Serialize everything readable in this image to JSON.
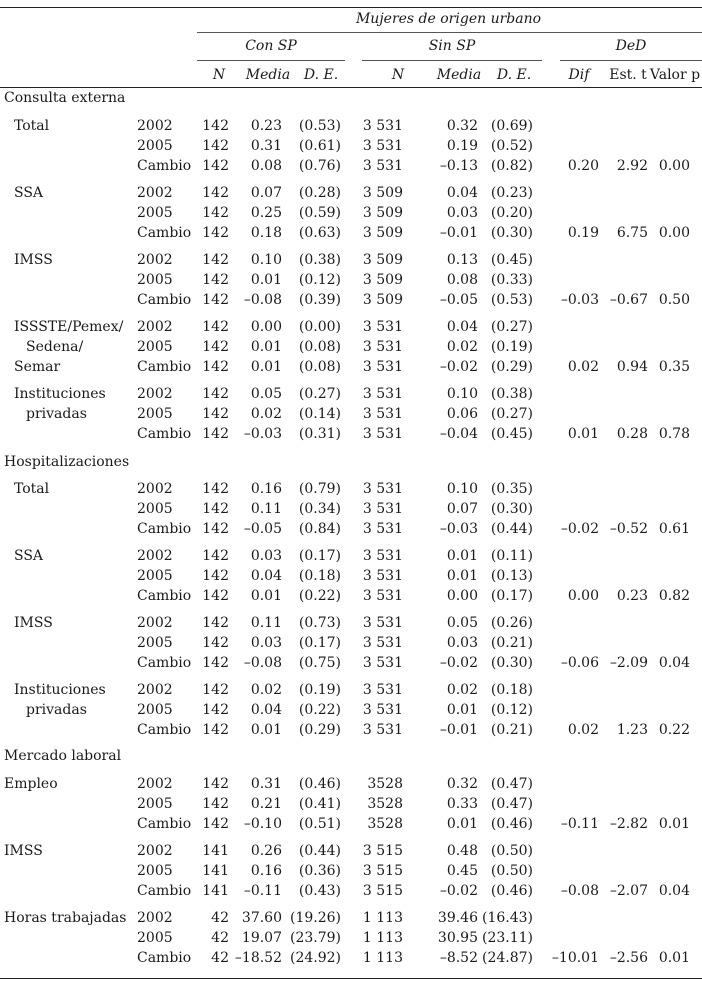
{
  "header": {
    "super": "Mujeres de origen urbano",
    "groups": [
      "Con SP",
      "Sin SP",
      "DeD"
    ],
    "cols": [
      "N",
      "Media",
      "D. E.",
      "N",
      "Media",
      "D. E.",
      "Dif",
      "Est. t",
      "Valor p"
    ]
  },
  "sections": [
    {
      "title": "Consulta externa",
      "blocks": [
        {
          "label": [
            "Total"
          ],
          "rows": [
            [
              "2002",
              "142",
              "0.23",
              "(0.53)",
              "3 531",
              "0.32",
              "(0.69)",
              "",
              "",
              ""
            ],
            [
              "2005",
              "142",
              "0.31",
              "(0.61)",
              "3 531",
              "0.19",
              "(0.52)",
              "",
              "",
              ""
            ],
            [
              "Cambio",
              "142",
              "0.08",
              "(0.76)",
              "3 531",
              "–0.13",
              "(0.82)",
              "0.20",
              "2.92",
              "0.00"
            ]
          ]
        },
        {
          "label": [
            "SSA"
          ],
          "rows": [
            [
              "2002",
              "142",
              "0.07",
              "(0.28)",
              "3 509",
              "0.04",
              "(0.23)",
              "",
              "",
              ""
            ],
            [
              "2005",
              "142",
              "0.25",
              "(0.59)",
              "3 509",
              "0.03",
              "(0.20)",
              "",
              "",
              ""
            ],
            [
              "Cambio",
              "142",
              "0.18",
              "(0.63)",
              "3 509",
              "–0.01",
              "(0.30)",
              "0.19",
              "6.75",
              "0.00"
            ]
          ]
        },
        {
          "label": [
            "IMSS"
          ],
          "rows": [
            [
              "2002",
              "142",
              "0.10",
              "(0.38)",
              "3 509",
              "0.13",
              "(0.45)",
              "",
              "",
              ""
            ],
            [
              "2005",
              "142",
              "0.01",
              "(0.12)",
              "3 509",
              "0.08",
              "(0.33)",
              "",
              "",
              ""
            ],
            [
              "Cambio",
              "142",
              "–0.08",
              "(0.39)",
              "3 509",
              "–0.05",
              "(0.53)",
              "–0.03",
              "–0.67",
              "0.50"
            ]
          ]
        },
        {
          "label": [
            "ISSSTE/Pemex/",
            "Sedena/",
            "Semar"
          ],
          "rows": [
            [
              "2002",
              "142",
              "0.00",
              "(0.00)",
              "3 531",
              "0.04",
              "(0.27)",
              "",
              "",
              ""
            ],
            [
              "2005",
              "142",
              "0.01",
              "(0.08)",
              "3 531",
              "0.02",
              "(0.19)",
              "",
              "",
              ""
            ],
            [
              "Cambio",
              "142",
              "0.01",
              "(0.08)",
              "3 531",
              "–0.02",
              "(0.29)",
              "0.02",
              "0.94",
              "0.35"
            ]
          ]
        },
        {
          "label": [
            "Instituciones",
            "privadas"
          ],
          "rows": [
            [
              "2002",
              "142",
              "0.05",
              "(0.27)",
              "3 531",
              "0.10",
              "(0.38)",
              "",
              "",
              ""
            ],
            [
              "2005",
              "142",
              "0.02",
              "(0.14)",
              "3 531",
              "0.06",
              "(0.27)",
              "",
              "",
              ""
            ],
            [
              "Cambio",
              "142",
              "–0.03",
              "(0.31)",
              "3 531",
              "–0.04",
              "(0.45)",
              "0.01",
              "0.28",
              "0.78"
            ]
          ]
        }
      ]
    },
    {
      "title": "Hospitalizaciones",
      "blocks": [
        {
          "label": [
            "Total"
          ],
          "rows": [
            [
              "2002",
              "142",
              "0.16",
              "(0.79)",
              "3 531",
              "0.10",
              "(0.35)",
              "",
              "",
              ""
            ],
            [
              "2005",
              "142",
              "0.11",
              "(0.34)",
              "3 531",
              "0.07",
              "(0.30)",
              "",
              "",
              ""
            ],
            [
              "Cambio",
              "142",
              "–0.05",
              "(0.84)",
              "3 531",
              "–0.03",
              "(0.44)",
              "–0.02",
              "–0.52",
              "0.61"
            ]
          ]
        },
        {
          "label": [
            "SSA"
          ],
          "rows": [
            [
              "2002",
              "142",
              "0.03",
              "(0.17)",
              "3 531",
              "0.01",
              "(0.11)",
              "",
              "",
              ""
            ],
            [
              "2005",
              "142",
              "0.04",
              "(0.18)",
              "3 531",
              "0.01",
              "(0.13)",
              "",
              "",
              ""
            ],
            [
              "Cambio",
              "142",
              "0.01",
              "(0.22)",
              "3 531",
              "0.00",
              "(0.17)",
              "0.00",
              "0.23",
              "0.82"
            ]
          ]
        },
        {
          "label": [
            "IMSS"
          ],
          "rows": [
            [
              "2002",
              "142",
              "0.11",
              "(0.73)",
              "3 531",
              "0.05",
              "(0.26)",
              "",
              "",
              ""
            ],
            [
              "2005",
              "142",
              "0.03",
              "(0.17)",
              "3 531",
              "0.03",
              "(0.21)",
              "",
              "",
              ""
            ],
            [
              "Cambio",
              "142",
              "–0.08",
              "(0.75)",
              "3 531",
              "–0.02",
              "(0.30)",
              "–0.06",
              "–2.09",
              "0.04"
            ]
          ]
        },
        {
          "label": [
            "Instituciones",
            "privadas"
          ],
          "rows": [
            [
              "2002",
              "142",
              "0.02",
              "(0.19)",
              "3 531",
              "0.02",
              "(0.18)",
              "",
              "",
              ""
            ],
            [
              "2005",
              "142",
              "0.04",
              "(0.22)",
              "3 531",
              "0.01",
              "(0.12)",
              "",
              "",
              ""
            ],
            [
              "Cambio",
              "142",
              "0.01",
              "(0.29)",
              "3 531",
              "–0.01",
              "(0.21)",
              "0.02",
              "1.23",
              "0.22"
            ]
          ]
        }
      ]
    },
    {
      "title": "Mercado laboral",
      "blocks": [
        {
          "label": [
            "Empleo"
          ],
          "rows": [
            [
              "2002",
              "142",
              "0.31",
              "(0.46)",
              "3528",
              "0.32",
              "(0.47)",
              "",
              "",
              ""
            ],
            [
              "2005",
              "142",
              "0.21",
              "(0.41)",
              "3528",
              "0.33",
              "(0.47)",
              "",
              "",
              ""
            ],
            [
              "Cambio",
              "142",
              "–0.10",
              "(0.51)",
              "3528",
              "0.01",
              "(0.46)",
              "–0.11",
              "–2.82",
              "0.01"
            ]
          ]
        },
        {
          "label": [
            "IMSS"
          ],
          "rows": [
            [
              "2002",
              "141",
              "0.26",
              "(0.44)",
              "3 515",
              "0.48",
              "(0.50)",
              "",
              "",
              ""
            ],
            [
              "2005",
              "141",
              "0.16",
              "(0.36)",
              "3 515",
              "0.45",
              "(0.50)",
              "",
              "",
              ""
            ],
            [
              "Cambio",
              "141",
              "–0.11",
              "(0.43)",
              "3 515",
              "–0.02",
              "(0.46)",
              "–0.08",
              "–2.07",
              "0.04"
            ]
          ]
        },
        {
          "label": [
            "Horas trabajadas"
          ],
          "rows": [
            [
              "2002",
              "42",
              "37.60",
              "(19.26)",
              "1 113",
              "39.46",
              "(16.43)",
              "",
              "",
              ""
            ],
            [
              "2005",
              "42",
              "19.07",
              "(23.79)",
              "1 113",
              "30.95",
              "(23.11)",
              "",
              "",
              ""
            ],
            [
              "Cambio",
              "42",
              "–18.52",
              "(24.92)",
              "1 113",
              "–8.52",
              "(24.87)",
              "–10.01",
              "–2.56",
              "0.01"
            ]
          ]
        }
      ]
    }
  ]
}
